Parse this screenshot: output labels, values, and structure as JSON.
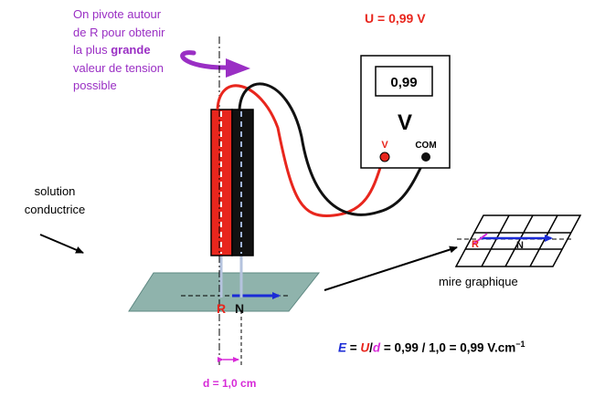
{
  "pivot_note": {
    "line1": "On pivote autour",
    "line2": "de R pour obtenir",
    "line3_prefix": "la plus ",
    "line3_bold": "grande",
    "line4": "valeur de tension",
    "line5": "possible"
  },
  "voltage_reading": "U = 0,99 V",
  "voltmeter": {
    "display": "0,99",
    "unit": "V",
    "terminal_v": "V",
    "terminal_com": "COM"
  },
  "solution_label": {
    "line1": "solution",
    "line2": "conductrice"
  },
  "probes": {
    "r": "R",
    "n": "N"
  },
  "mire": {
    "label": "mire graphique",
    "r": "R",
    "n": "N"
  },
  "distance_label": "d = 1,0 cm",
  "formula": {
    "E": "E",
    "eq1": " = ",
    "U": "U",
    "slash": "/",
    "d": "d",
    "rest": " = 0,99 / 1,0 = 0,99 V.cm",
    "exp": "−1"
  },
  "colors": {
    "purple": "#9a2fc4",
    "red": "#e8261d",
    "magenta": "#d72ad8",
    "blue": "#1b2bd6",
    "plate": "#8fb3ac"
  }
}
